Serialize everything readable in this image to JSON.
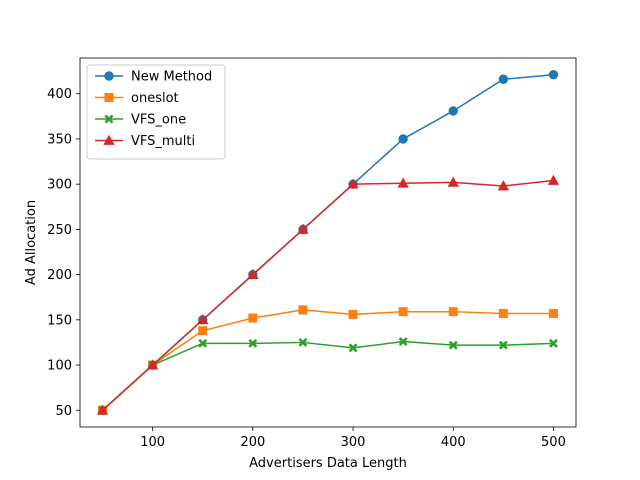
{
  "chart_data": {
    "type": "line",
    "title": "",
    "xlabel": "Advertisers Data Length",
    "ylabel": "Ad Allocation",
    "x": [
      50,
      100,
      150,
      200,
      250,
      300,
      350,
      400,
      450,
      500
    ],
    "xlim": [
      27.5,
      522.5
    ],
    "ylim": [
      31.5,
      439.5
    ],
    "xticks": [
      100,
      200,
      300,
      400,
      500
    ],
    "yticks": [
      50,
      100,
      150,
      200,
      250,
      300,
      350,
      400
    ],
    "grid": false,
    "legend_position": "top-left",
    "series": [
      {
        "name": "New Method",
        "color": "#1f77b4",
        "marker": "circle",
        "values": [
          50,
          100,
          150,
          200,
          250,
          300,
          350,
          381,
          416,
          421
        ]
      },
      {
        "name": "oneslot",
        "color": "#ff7f0e",
        "marker": "square",
        "values": [
          50,
          100,
          138,
          152,
          161,
          156,
          159,
          159,
          157,
          157
        ]
      },
      {
        "name": "VFS_one",
        "color": "#2ca02c",
        "marker": "x-filled",
        "values": [
          50,
          100,
          124,
          124,
          125,
          119,
          126,
          122,
          122,
          124
        ]
      },
      {
        "name": "VFS_multi",
        "color": "#d62728",
        "marker": "triangle-up",
        "values": [
          50,
          100,
          150,
          200,
          250,
          300,
          301,
          302,
          298,
          304
        ]
      }
    ]
  }
}
